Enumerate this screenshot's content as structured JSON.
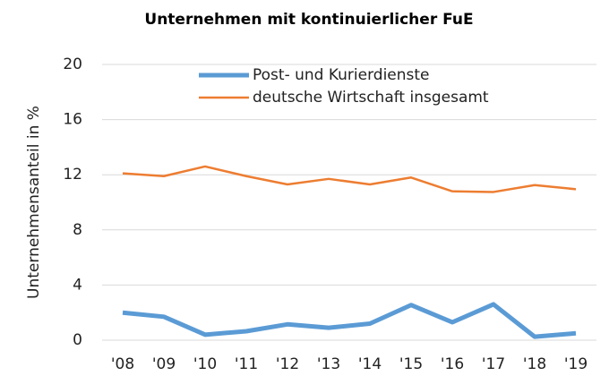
{
  "chart_data": {
    "type": "line",
    "title": "Unternehmen mit kontinuierlicher FuE",
    "y_label": "Unternehmensanteil in %",
    "categories": [
      "'08",
      "'09",
      "'10",
      "'11",
      "'12",
      "'13",
      "'14",
      "'15",
      "'16",
      "'17",
      "'18",
      "'19"
    ],
    "series": [
      {
        "name": "Post- und Kurierdienste",
        "color": "#5b9bd5",
        "values": [
          2.0,
          1.7,
          0.4,
          0.65,
          1.15,
          0.9,
          1.2,
          2.55,
          1.3,
          2.6,
          0.25,
          0.5
        ]
      },
      {
        "name": "deutsche Wirtschaft insgesamt",
        "color": "#ed7d31",
        "values": [
          12.1,
          11.9,
          12.6,
          11.9,
          11.3,
          11.7,
          11.3,
          11.8,
          10.8,
          10.75,
          11.25,
          10.95
        ]
      }
    ],
    "ylim": [
      0,
      20
    ],
    "yticks": [
      0,
      4,
      8,
      12,
      16,
      20
    ],
    "grid": true
  }
}
